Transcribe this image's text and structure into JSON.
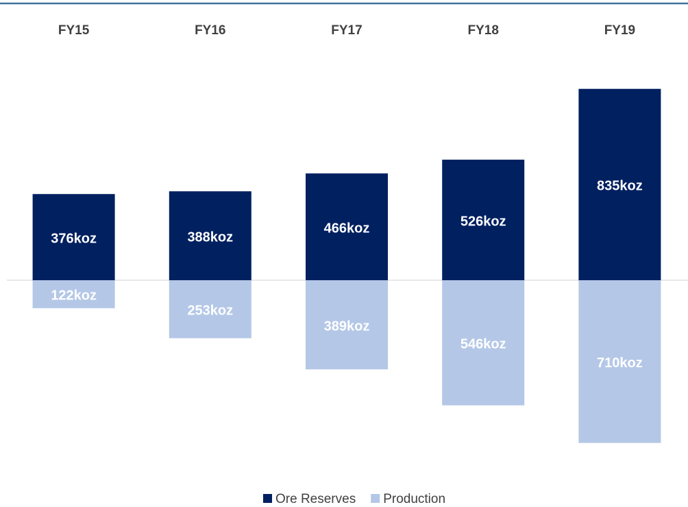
{
  "chart_data": {
    "type": "bar",
    "categories": [
      "FY15",
      "FY16",
      "FY17",
      "FY18",
      "FY19"
    ],
    "series": [
      {
        "name": "Ore Reserves",
        "color": "#002060",
        "values": [
          376,
          388,
          466,
          526,
          835
        ],
        "value_labels": [
          "376koz",
          "388koz",
          "466koz",
          "526koz",
          "835koz"
        ]
      },
      {
        "name": "Production",
        "color": "#b4c7e7",
        "values": [
          122,
          253,
          389,
          546,
          710
        ],
        "value_labels": [
          "122koz",
          "253koz",
          "389koz",
          "546koz",
          "710koz"
        ]
      }
    ]
  }
}
